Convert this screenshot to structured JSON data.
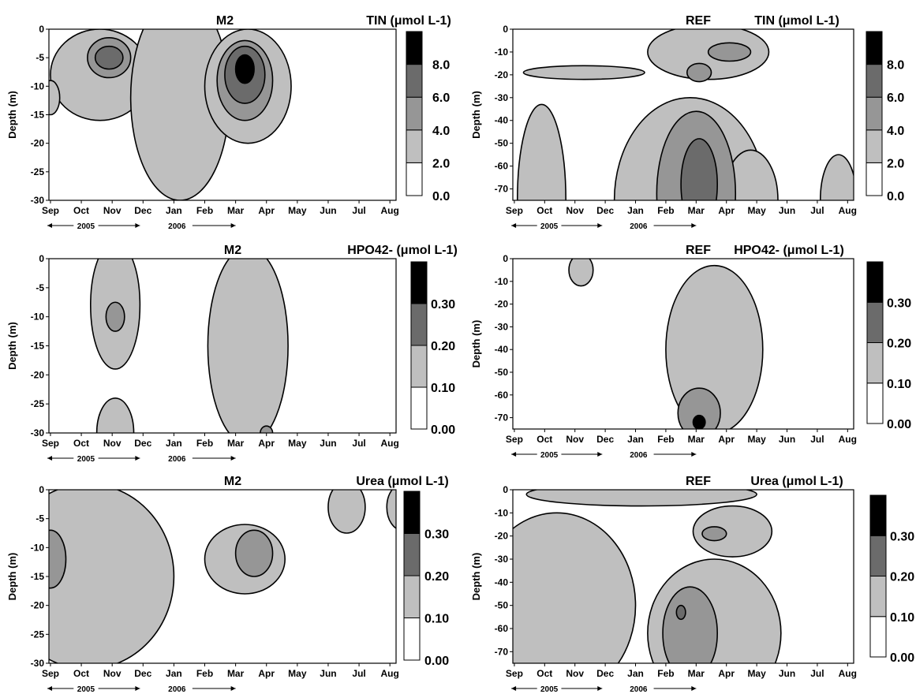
{
  "palette": [
    "#ffffff",
    "#bfbfbf",
    "#969696",
    "#6b6b6b",
    "#000000"
  ],
  "chart_data": [
    {
      "type": "heatmap",
      "title": "M2",
      "variable_label": "TIN (μmol L-1)",
      "ylabel": "Depth (m)",
      "x_ticks": [
        "Sep",
        "Oct",
        "Nov",
        "Dec",
        "Jan",
        "Feb",
        "Mar",
        "Apr",
        "May",
        "Jun",
        "Jul",
        "Aug"
      ],
      "years": [
        "2005",
        "2006"
      ],
      "ylim": [
        -30,
        0
      ],
      "y_ticks": [
        "0",
        "-5",
        "-10",
        "-15",
        "-20",
        "-25",
        "-30"
      ],
      "colorbar_levels": [
        0.0,
        2.0,
        4.0,
        6.0,
        8.0,
        10.0
      ],
      "colorbar_labels": [
        "0.0",
        "2.0",
        "4.0",
        "6.0",
        "8.0"
      ],
      "contour_blobs": [
        {
          "level": 1,
          "center": [
            1.6,
            -8
          ],
          "radius": [
            1.6,
            8
          ]
        },
        {
          "level": 1,
          "center": [
            4.2,
            -12
          ],
          "radius": [
            1.6,
            18
          ]
        },
        {
          "level": 1,
          "center": [
            6.4,
            -10
          ],
          "radius": [
            1.4,
            10
          ]
        },
        {
          "level": 1,
          "center": [
            0.0,
            -12
          ],
          "radius": [
            0.3,
            3
          ]
        },
        {
          "level": 2,
          "center": [
            1.9,
            -5
          ],
          "radius": [
            0.7,
            3.5
          ]
        },
        {
          "level": 2,
          "center": [
            6.3,
            -9
          ],
          "radius": [
            0.9,
            7
          ]
        },
        {
          "level": 3,
          "center": [
            1.9,
            -5
          ],
          "radius": [
            0.45,
            2
          ]
        },
        {
          "level": 3,
          "center": [
            6.3,
            -8
          ],
          "radius": [
            0.65,
            5
          ]
        },
        {
          "level": 4,
          "center": [
            6.3,
            -7
          ],
          "radius": [
            0.3,
            2.5
          ]
        }
      ]
    },
    {
      "type": "heatmap",
      "title": "REF",
      "variable_label": "TIN (μmol L-1)",
      "ylabel": "Depth (m)",
      "x_ticks": [
        "Sep",
        "Oct",
        "Nov",
        "Dec",
        "Jan",
        "Feb",
        "Mar",
        "Apr",
        "May",
        "Jun",
        "Jul",
        "Aug"
      ],
      "years": [
        "2005",
        "2006"
      ],
      "ylim": [
        -75,
        0
      ],
      "y_ticks": [
        "0",
        "-10",
        "-20",
        "-30",
        "-40",
        "-50",
        "-60",
        "-70"
      ],
      "colorbar_levels": [
        0.0,
        2.0,
        4.0,
        6.0,
        8.0,
        10.0
      ],
      "colorbar_labels": [
        "0.0",
        "2.0",
        "4.0",
        "6.0",
        "8.0"
      ],
      "contour_blobs": [
        {
          "level": 1,
          "center": [
            6.4,
            -10
          ],
          "radius": [
            2.0,
            12
          ]
        },
        {
          "level": 1,
          "center": [
            2.3,
            -19
          ],
          "radius": [
            2.0,
            3
          ]
        },
        {
          "level": 1,
          "center": [
            0.9,
            -75
          ],
          "radius": [
            0.8,
            42
          ]
        },
        {
          "level": 1,
          "center": [
            5.8,
            -75
          ],
          "radius": [
            2.5,
            45
          ]
        },
        {
          "level": 1,
          "center": [
            7.8,
            -75
          ],
          "radius": [
            0.9,
            22
          ]
        },
        {
          "level": 1,
          "center": [
            10.7,
            -75
          ],
          "radius": [
            0.6,
            20
          ]
        },
        {
          "level": 2,
          "center": [
            6.0,
            -72
          ],
          "radius": [
            1.3,
            36
          ]
        },
        {
          "level": 2,
          "center": [
            7.1,
            -10
          ],
          "radius": [
            0.7,
            4
          ]
        },
        {
          "level": 2,
          "center": [
            6.1,
            -19
          ],
          "radius": [
            0.4,
            4
          ]
        },
        {
          "level": 3,
          "center": [
            6.1,
            -68
          ],
          "radius": [
            0.6,
            20
          ]
        }
      ]
    },
    {
      "type": "heatmap",
      "title": "M2",
      "variable_label": "HPO42- (μmol L-1)",
      "ylabel": "Depth (m)",
      "x_ticks": [
        "Sep",
        "Oct",
        "Nov",
        "Dec",
        "Jan",
        "Feb",
        "Mar",
        "Apr",
        "May",
        "Jun",
        "Jul",
        "Aug"
      ],
      "years": [
        "2005",
        "2006"
      ],
      "ylim": [
        -30,
        0
      ],
      "y_ticks": [
        "0",
        "-5",
        "-10",
        "-15",
        "-20",
        "-25",
        "-30"
      ],
      "colorbar_levels": [
        0.0,
        0.1,
        0.2,
        0.3,
        0.4
      ],
      "colorbar_labels": [
        "0.00",
        "0.10",
        "0.20",
        "0.30"
      ],
      "contour_blobs": [
        {
          "level": 1,
          "center": [
            2.1,
            -8
          ],
          "radius": [
            0.8,
            11
          ]
        },
        {
          "level": 1,
          "center": [
            2.1,
            -30
          ],
          "radius": [
            0.6,
            6
          ]
        },
        {
          "level": 1,
          "center": [
            6.4,
            -15
          ],
          "radius": [
            1.3,
            17
          ]
        },
        {
          "level": 2,
          "center": [
            2.1,
            -10
          ],
          "radius": [
            0.3,
            2.5
          ]
        },
        {
          "level": 2,
          "center": [
            7.0,
            -30
          ],
          "radius": [
            0.2,
            1.2
          ]
        }
      ]
    },
    {
      "type": "heatmap",
      "title": "REF",
      "variable_label": "HPO42- (μmol L-1)",
      "ylabel": "Depth (m)",
      "x_ticks": [
        "Sep",
        "Oct",
        "Nov",
        "Dec",
        "Jan",
        "Feb",
        "Mar",
        "Apr",
        "May",
        "Jun",
        "Jul",
        "Aug"
      ],
      "years": [
        "2005",
        "2006"
      ],
      "ylim": [
        -75,
        0
      ],
      "y_ticks": [
        "0",
        "-10",
        "-20",
        "-30",
        "-40",
        "-50",
        "-60",
        "-70"
      ],
      "colorbar_levels": [
        0.0,
        0.1,
        0.2,
        0.3,
        0.4
      ],
      "colorbar_labels": [
        "0.00",
        "0.10",
        "0.20",
        "0.30"
      ],
      "contour_blobs": [
        {
          "level": 1,
          "center": [
            2.2,
            -5
          ],
          "radius": [
            0.4,
            7
          ]
        },
        {
          "level": 1,
          "center": [
            6.6,
            -40
          ],
          "radius": [
            1.6,
            37
          ]
        },
        {
          "level": 2,
          "center": [
            6.1,
            -68
          ],
          "radius": [
            0.7,
            11
          ]
        },
        {
          "level": 4,
          "center": [
            6.1,
            -72
          ],
          "radius": [
            0.2,
            3
          ]
        }
      ]
    },
    {
      "type": "heatmap",
      "title": "M2",
      "variable_label": "Urea (μmol L-1)",
      "ylabel": "Depth (m)",
      "x_ticks": [
        "Sep",
        "Oct",
        "Nov",
        "Dec",
        "Jan",
        "Feb",
        "Mar",
        "Apr",
        "May",
        "Jun",
        "Jul",
        "Aug"
      ],
      "years": [
        "2005",
        "2006"
      ],
      "ylim": [
        -30,
        0
      ],
      "y_ticks": [
        "0",
        "-5",
        "-10",
        "-15",
        "-20",
        "-25",
        "-30"
      ],
      "colorbar_levels": [
        0.0,
        0.1,
        0.2,
        0.3,
        0.4
      ],
      "colorbar_labels": [
        "0.00",
        "0.10",
        "0.20",
        "0.30"
      ],
      "contour_blobs": [
        {
          "level": 1,
          "center": [
            1.2,
            -15
          ],
          "radius": [
            2.8,
            16
          ]
        },
        {
          "level": 1,
          "center": [
            6.3,
            -12
          ],
          "radius": [
            1.3,
            6
          ]
        },
        {
          "level": 1,
          "center": [
            9.6,
            -3
          ],
          "radius": [
            0.6,
            4.5
          ]
        },
        {
          "level": 1,
          "center": [
            11.4,
            -3
          ],
          "radius": [
            0.5,
            4
          ]
        },
        {
          "level": 2,
          "center": [
            0.0,
            -12
          ],
          "radius": [
            0.5,
            5
          ]
        },
        {
          "level": 2,
          "center": [
            6.6,
            -11
          ],
          "radius": [
            0.6,
            4
          ]
        }
      ]
    },
    {
      "type": "heatmap",
      "title": "REF",
      "variable_label": "Urea (μmol L-1)",
      "ylabel": "Depth (m)",
      "x_ticks": [
        "Sep",
        "Oct",
        "Nov",
        "Dec",
        "Jan",
        "Feb",
        "Mar",
        "Apr",
        "May",
        "Jun",
        "Jul",
        "Aug"
      ],
      "years": [
        "2005",
        "2006"
      ],
      "ylim": [
        -75,
        0
      ],
      "y_ticks": [
        "0",
        "-10",
        "-20",
        "-30",
        "-40",
        "-50",
        "-60",
        "-70"
      ],
      "colorbar_levels": [
        0.0,
        0.1,
        0.2,
        0.3,
        0.4
      ],
      "colorbar_labels": [
        "0.00",
        "0.10",
        "0.20",
        "0.30"
      ],
      "contour_blobs": [
        {
          "level": 1,
          "center": [
            1.4,
            -50
          ],
          "radius": [
            2.6,
            40
          ]
        },
        {
          "level": 1,
          "center": [
            6.6,
            -62
          ],
          "radius": [
            2.2,
            32
          ]
        },
        {
          "level": 1,
          "center": [
            7.2,
            -18
          ],
          "radius": [
            1.3,
            11
          ]
        },
        {
          "level": 1,
          "center": [
            4.2,
            -2
          ],
          "radius": [
            3.8,
            5
          ]
        },
        {
          "level": 2,
          "center": [
            5.8,
            -62
          ],
          "radius": [
            0.9,
            20
          ]
        },
        {
          "level": 2,
          "center": [
            6.6,
            -19
          ],
          "radius": [
            0.4,
            3
          ]
        },
        {
          "level": 3,
          "center": [
            5.5,
            -53
          ],
          "radius": [
            0.15,
            3
          ]
        }
      ]
    }
  ]
}
